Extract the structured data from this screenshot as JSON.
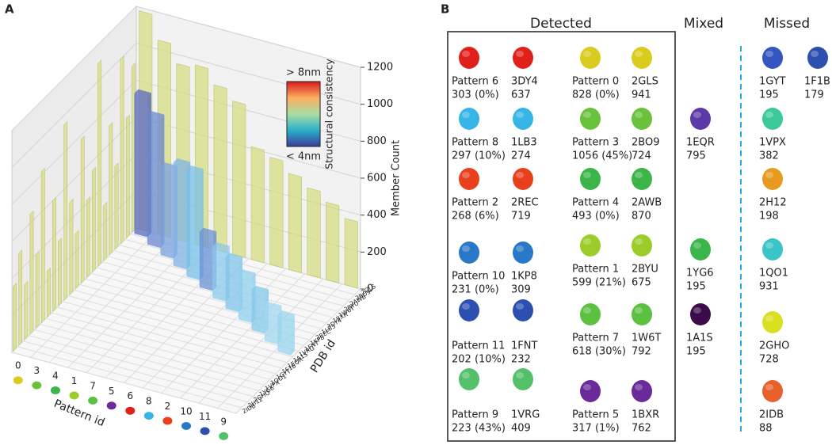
{
  "panel_a": {
    "label": "A",
    "z_axis_label": "Member Count",
    "zlim": [
      0,
      1200
    ],
    "zticks": [
      0,
      200,
      400,
      600,
      800,
      1000,
      1200
    ],
    "x_axis_label": "Pattern id",
    "pattern_ids": [
      "0",
      "3",
      "4",
      "1",
      "7",
      "5",
      "6",
      "8",
      "2",
      "10",
      "11",
      "9"
    ],
    "pattern_colors": [
      "#d9cc1e",
      "#6ac23a",
      "#3cb44a",
      "#9ccc2a",
      "#5cc040",
      "#6a2a9a",
      "#e0201b",
      "#35b6e6",
      "#e8401c",
      "#2a78c8",
      "#2d4fb0",
      "#55c06a"
    ],
    "y_axis_label": "PDB id",
    "pdb_ids": [
      "2GLS",
      "2BO9",
      "2AWB",
      "2BYU",
      "1W6T",
      "1BXR",
      "3DY4",
      "1LB3",
      "2REC",
      "1KP8",
      "1FNT",
      "1VRG",
      "1A1S",
      "1EQR",
      "1F1B",
      "1GYT",
      "1QO1",
      "1VPX",
      "1YG6",
      "2GHO",
      "2H12",
      "2IDB"
    ],
    "pattern_wall_values": [
      1180,
      1050,
      950,
      970,
      890,
      830,
      610,
      580,
      520,
      470,
      420,
      360
    ],
    "pdb_wall_values": [
      900,
      650,
      1000,
      450,
      700,
      300,
      1100,
      550,
      420,
      780,
      300,
      500,
      950,
      350,
      600,
      250,
      820,
      400,
      650,
      300,
      500,
      350
    ],
    "wall_color": "#d4dc7a",
    "matched_values": [
      760,
      700,
      480,
      560,
      580,
      300,
      280,
      280,
      250,
      220,
      190,
      200
    ],
    "matched_colors": [
      "#5a68c0",
      "#6a88d0",
      "#7aa0dc",
      "#80b4e4",
      "#78c0ea",
      "#6890d4",
      "#8cc8ec",
      "#80c4ea",
      "#90d0ee",
      "#84c8ea",
      "#a0d8f0",
      "#98d4ec"
    ],
    "colorbar": {
      "top": "> 8nm",
      "bottom": "< 4nm",
      "label": "Structural consistency"
    }
  },
  "panel_b": {
    "label": "B",
    "detected": {
      "title": "Detected",
      "items": [
        {
          "name": "Pattern 6",
          "detail": "303 (0%)",
          "color": "#e0201b"
        },
        {
          "name": "3DY4",
          "detail": "637",
          "color": "#e0201b"
        },
        {
          "name": "Pattern 8",
          "detail": "297 (10%)",
          "color": "#35b6e6"
        },
        {
          "name": "1LB3",
          "detail": "274",
          "color": "#35b6e6"
        },
        {
          "name": "Pattern 2",
          "detail": "268 (6%)",
          "color": "#e8401c"
        },
        {
          "name": "2REC",
          "detail": "719",
          "color": "#e8401c"
        },
        {
          "name": "Pattern 10",
          "detail": "231 (0%)",
          "color": "#2a78c8"
        },
        {
          "name": "1KP8",
          "detail": "309",
          "color": "#2a78c8"
        },
        {
          "name": "Pattern 11",
          "detail": "202 (10%)",
          "color": "#2d4fb0"
        },
        {
          "name": "1FNT",
          "detail": "232",
          "color": "#2d4fb0"
        },
        {
          "name": "Pattern 9",
          "detail": "223 (43%)",
          "color": "#55c06a"
        },
        {
          "name": "1VRG",
          "detail": "409",
          "color": "#55c06a"
        },
        {
          "name": "Pattern 0",
          "detail": "828 (0%)",
          "color": "#d9cc1e"
        },
        {
          "name": "2GLS",
          "detail": "941",
          "color": "#d9cc1e"
        },
        {
          "name": "Pattern 3",
          "detail": "1056 (45%)",
          "color": "#6ac23a"
        },
        {
          "name": "2BO9",
          "detail": "724",
          "color": "#6ac23a"
        },
        {
          "name": "Pattern 4",
          "detail": "493 (0%)",
          "color": "#3cb44a"
        },
        {
          "name": "2AWB",
          "detail": "870",
          "color": "#3cb44a"
        },
        {
          "name": "Pattern 1",
          "detail": "599 (21%)",
          "color": "#9ccc2a"
        },
        {
          "name": "2BYU",
          "detail": "675",
          "color": "#9ccc2a"
        },
        {
          "name": "Pattern 7",
          "detail": "618 (30%)",
          "color": "#5cc040"
        },
        {
          "name": "1W6T",
          "detail": "792",
          "color": "#5cc040"
        },
        {
          "name": "Pattern 5",
          "detail": "317 (1%)",
          "color": "#6a2a9a"
        },
        {
          "name": "1BXR",
          "detail": "762",
          "color": "#6a2a9a"
        }
      ]
    },
    "mixed": {
      "title": "Mixed",
      "items": [
        {
          "name": "1EQR",
          "detail": "795",
          "color": "#5b3aa8"
        },
        {
          "name": "1YG6",
          "detail": "195",
          "color": "#3ab54a"
        },
        {
          "name": "1A1S",
          "detail": "195",
          "color": "#3a0a4a"
        }
      ]
    },
    "missed": {
      "title": "Missed",
      "items": [
        {
          "name": "1GYT",
          "detail": "195",
          "color": "#3555c0"
        },
        {
          "name": "1F1B",
          "detail": "179",
          "color": "#2d4fb0"
        },
        {
          "name": "1VPX",
          "detail": "382",
          "color": "#3dc89a"
        },
        {
          "name": "2H12",
          "detail": "198",
          "color": "#e89a20"
        },
        {
          "name": "1QO1",
          "detail": "931",
          "color": "#3ac4c8"
        },
        {
          "name": "2GHO",
          "detail": "728",
          "color": "#d8e020"
        },
        {
          "name": "2IDB",
          "detail": "88",
          "color": "#e8602a"
        }
      ]
    }
  }
}
